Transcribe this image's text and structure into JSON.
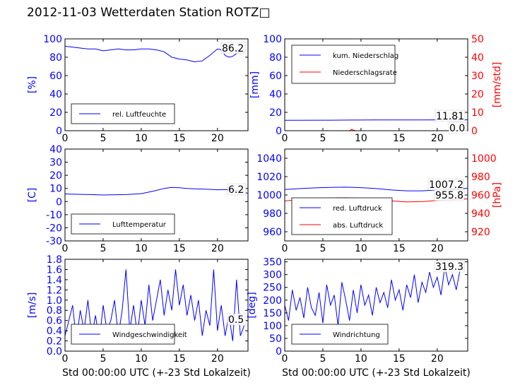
{
  "title": "2012-11-03 Wetterdaten Station ROTZ□",
  "colors": {
    "blue": "#0000ff",
    "red": "#ff0000",
    "black": "#000000"
  },
  "chart_data": [
    {
      "type": "line",
      "name": "humidity",
      "ylabel": "[%]",
      "xlim": [
        0,
        24
      ],
      "ylim": [
        0,
        100
      ],
      "xticks": [
        0,
        5,
        10,
        15,
        20
      ],
      "yticks": [
        0,
        20,
        40,
        60,
        80,
        100
      ],
      "series": [
        {
          "name": "rel. Luftfeuchte",
          "color": "#0000ff",
          "x": [
            0,
            1,
            2,
            3,
            4,
            5,
            6,
            7,
            8,
            9,
            10,
            11,
            12,
            13,
            14,
            15,
            16,
            17,
            18,
            19,
            20,
            20.5,
            21,
            21.5,
            22,
            22.5,
            23,
            23.5
          ],
          "y": [
            92,
            91,
            90,
            89,
            89,
            87,
            88,
            89,
            88,
            88,
            89,
            89,
            88,
            86,
            80,
            78,
            77,
            75,
            76,
            82,
            89,
            88,
            82,
            80,
            81,
            84,
            86,
            86.2
          ]
        }
      ],
      "value_label": "86.2",
      "legend": "bottom-left"
    },
    {
      "type": "line",
      "name": "precipitation",
      "ylabel": "[mm]",
      "y2label": "[mm/std]",
      "xlim": [
        0,
        24
      ],
      "ylim": [
        0,
        100
      ],
      "y2lim": [
        0,
        50
      ],
      "xticks": [
        0,
        5,
        10,
        15,
        20
      ],
      "yticks": [
        0,
        20,
        40,
        60,
        80,
        100
      ],
      "y2ticks": [
        0,
        10,
        20,
        30,
        40,
        50
      ],
      "series": [
        {
          "name": "kum. Niederschlag",
          "axis": "left",
          "color": "#0000ff",
          "x": [
            0,
            6,
            9,
            12,
            18,
            24
          ],
          "y": [
            11.4,
            11.5,
            11.6,
            11.7,
            11.8,
            11.81
          ]
        },
        {
          "name": "Niederschlagsrate",
          "axis": "right",
          "color": "#ff0000",
          "x": [
            0,
            8.5,
            8.8,
            9.0,
            9.3,
            14,
            24
          ],
          "y": [
            0,
            0,
            0.8,
            0.3,
            0,
            0,
            0
          ]
        }
      ],
      "value_labels": [
        "11.81",
        "0.0"
      ],
      "legend": "top-left"
    },
    {
      "type": "line",
      "name": "temperature",
      "ylabel": "[C]",
      "xlim": [
        0,
        24
      ],
      "ylim": [
        -30,
        40
      ],
      "xticks": [
        0,
        5,
        10,
        15,
        20
      ],
      "yticks": [
        -30,
        -20,
        -10,
        0,
        10,
        20,
        30,
        40
      ],
      "series": [
        {
          "name": "Lufttemperatur",
          "color": "#0000ff",
          "x": [
            0,
            2,
            4,
            5,
            6,
            8,
            10,
            11,
            12,
            13,
            14,
            15,
            16,
            17,
            18,
            19,
            20,
            21,
            22,
            23,
            24
          ],
          "y": [
            5.8,
            5.5,
            5.2,
            5.0,
            5.1,
            5.3,
            6.0,
            7.2,
            8.5,
            10.0,
            10.8,
            10.5,
            10.0,
            9.7,
            9.5,
            9.3,
            9.0,
            9.2,
            8.6,
            8.3,
            6.2
          ]
        }
      ],
      "value_label": "6.2",
      "legend": "bottom-left"
    },
    {
      "type": "line",
      "name": "pressure",
      "y2label": "[hPa]",
      "xlim": [
        0,
        24
      ],
      "ylim": [
        950,
        1050
      ],
      "y2lim": [
        910,
        1010
      ],
      "xticks": [
        0,
        5,
        10,
        15,
        20
      ],
      "yticks": [
        960,
        980,
        1000,
        1020,
        1040
      ],
      "y2ticks": [
        920,
        940,
        960,
        980,
        1000
      ],
      "series": [
        {
          "name": "red. Luftdruck",
          "axis": "left",
          "color": "#0000ff",
          "x": [
            0,
            2,
            4,
            6,
            8,
            10,
            12,
            14,
            16,
            18,
            20,
            22,
            24
          ],
          "y": [
            1006.0,
            1007.0,
            1007.8,
            1008.3,
            1008.5,
            1008.0,
            1007.0,
            1005.5,
            1004.5,
            1004.5,
            1005.5,
            1006.5,
            1007.2
          ]
        },
        {
          "name": "abs. Luftdruck",
          "axis": "right",
          "color": "#ff0000",
          "x": [
            0,
            2,
            4,
            6,
            8,
            10,
            12,
            14,
            16,
            18,
            20,
            22,
            24
          ],
          "y": [
            953.5,
            955.0,
            956.0,
            956.8,
            957.0,
            956.5,
            955.5,
            953.5,
            952.5,
            952.8,
            954.0,
            955.0,
            955.8
          ]
        }
      ],
      "value_labels": [
        "1007.2",
        "955.8"
      ],
      "legend": "bottom-left"
    },
    {
      "type": "line",
      "name": "wind-speed",
      "ylabel": "[m/s]",
      "xlabel": "Std 00:00:00 UTC (+-23 Std Lokalzeit)",
      "xlim": [
        0,
        24
      ],
      "ylim": [
        0,
        1.8
      ],
      "xticks": [
        0,
        5,
        10,
        15,
        20
      ],
      "yticks": [
        0.0,
        0.2,
        0.4,
        0.6,
        0.8,
        1.0,
        1.2,
        1.4,
        1.6,
        1.8
      ],
      "series": [
        {
          "name": "Windgeschwindigkeit",
          "color": "#0000ff",
          "x": [
            0,
            0.5,
            1,
            1.5,
            2,
            2.5,
            3,
            3.5,
            4,
            4.5,
            5,
            5.5,
            6,
            6.5,
            7,
            7.5,
            8,
            8.5,
            9,
            9.5,
            10,
            10.5,
            11,
            11.5,
            12,
            12.5,
            13,
            13.5,
            14,
            14.5,
            15,
            15.5,
            16,
            16.5,
            17,
            17.5,
            18,
            18.5,
            19,
            19.5,
            20,
            20.5,
            21,
            21.5,
            22,
            22.5,
            23,
            23.5
          ],
          "y": [
            0.3,
            0.6,
            0.9,
            0.2,
            0.8,
            0.4,
            1.0,
            0.3,
            0.7,
            0.2,
            0.9,
            0.4,
            0.6,
            1.0,
            0.3,
            0.8,
            1.6,
            0.4,
            0.9,
            0.3,
            1.0,
            0.5,
            1.3,
            0.6,
            1.0,
            1.4,
            0.7,
            1.2,
            0.8,
            1.6,
            0.9,
            1.3,
            0.7,
            1.1,
            0.6,
            1.0,
            0.3,
            0.8,
            0.5,
            1.6,
            0.4,
            0.9,
            0.3,
            0.7,
            0.2,
            1.4,
            0.3,
            0.5
          ]
        }
      ],
      "value_label": "0.5",
      "legend": "bottom-left"
    },
    {
      "type": "line",
      "name": "wind-direction",
      "ylabel": "[deg]",
      "xlabel": "Std 00:00:00 UTC (+-23 Std Lokalzeit)",
      "xlim": [
        0,
        24
      ],
      "ylim": [
        0,
        360
      ],
      "xticks": [
        0,
        5,
        10,
        15,
        20
      ],
      "yticks": [
        0,
        50,
        100,
        150,
        200,
        250,
        300,
        350
      ],
      "series": [
        {
          "name": "Windrichtung",
          "color": "#0000ff",
          "x": [
            0,
            0.5,
            1,
            1.5,
            2,
            2.5,
            3,
            3.5,
            4,
            4.5,
            5,
            5.5,
            6,
            6.5,
            7,
            7.5,
            8,
            8.5,
            9,
            9.5,
            10,
            10.5,
            11,
            11.5,
            12,
            12.5,
            13,
            13.5,
            14,
            14.5,
            15,
            15.5,
            16,
            16.5,
            17,
            17.5,
            18,
            18.5,
            19,
            19.5,
            20,
            20.5,
            21,
            21.5,
            22,
            22.5,
            23,
            23.5
          ],
          "y": [
            180,
            120,
            240,
            160,
            210,
            130,
            250,
            170,
            140,
            230,
            110,
            260,
            180,
            220,
            100,
            270,
            200,
            120,
            240,
            150,
            260,
            180,
            220,
            140,
            250,
            190,
            230,
            170,
            280,
            200,
            240,
            160,
            260,
            210,
            300,
            190,
            270,
            230,
            310,
            250,
            290,
            220,
            330,
            260,
            300,
            240,
            320,
            319.3
          ]
        }
      ],
      "value_label": "319.3",
      "legend": "bottom-left"
    }
  ]
}
